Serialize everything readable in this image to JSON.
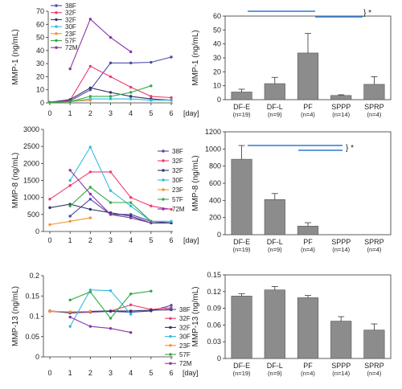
{
  "chart_data": [
    {
      "type": "line",
      "ylabel": "MMP-1 (ng/mL)",
      "xlabel": "[day]",
      "x_ticks": [
        "0",
        "1",
        "2",
        "3",
        "4",
        "5",
        "6"
      ],
      "y_ticks": [
        "0",
        "10",
        "20",
        "30",
        "40",
        "50",
        "60",
        "70"
      ],
      "ylim": [
        0,
        70
      ],
      "xlim": [
        0,
        6
      ],
      "legend_position": "top-left",
      "series": [
        {
          "name": "38F",
          "color": "#4a4aa8",
          "x": [
            0,
            1,
            2,
            3,
            4,
            5,
            6
          ],
          "y": [
            0.5,
            1.5,
            10,
            30.5,
            30.5,
            31,
            35
          ]
        },
        {
          "name": "32F",
          "color": "#ee3c6e",
          "x": [
            0,
            1,
            2,
            3,
            4,
            5,
            6
          ],
          "y": [
            0.5,
            2,
            28,
            20,
            12,
            5,
            4
          ]
        },
        {
          "name": "32F",
          "color": "#333366",
          "x": [
            0,
            1,
            2,
            3,
            4,
            5,
            6
          ],
          "y": [
            0.5,
            2.5,
            11.5,
            8,
            5,
            3,
            2
          ]
        },
        {
          "name": "30F",
          "color": "#33bbdd",
          "x": [
            0,
            1,
            2,
            3,
            4,
            5,
            6
          ],
          "y": [
            0.5,
            1,
            3,
            3,
            3,
            2,
            2
          ]
        },
        {
          "name": "23F",
          "color": "#f0962a",
          "x": [
            0,
            1,
            2
          ],
          "y": [
            0.5,
            1,
            2
          ]
        },
        {
          "name": "57F",
          "color": "#33aa44",
          "x": [
            0,
            1,
            2,
            3,
            4,
            5
          ],
          "y": [
            0.5,
            1,
            5,
            5,
            8,
            13
          ]
        },
        {
          "name": "72M",
          "color": "#8b33a8",
          "x": [
            1,
            2,
            3,
            4
          ],
          "y": [
            26,
            64,
            50,
            39
          ]
        }
      ]
    },
    {
      "type": "bar",
      "ylabel": "MMP-1 (ng/mL)",
      "y_ticks": [
        "0",
        "10",
        "20",
        "30",
        "40",
        "50",
        "60"
      ],
      "ylim": [
        0,
        60
      ],
      "categories": [
        "DF-E",
        "DF-L",
        "PF",
        "SPPP",
        "SPRP"
      ],
      "n_labels": [
        "(n=19)",
        "(n=9)",
        "(n=4)",
        "(n=14)",
        "(n=4)"
      ],
      "values": [
        5.5,
        11.5,
        33.5,
        3,
        11
      ],
      "errors": [
        2,
        4.5,
        14,
        0.5,
        5.5
      ],
      "significance": "} *"
    },
    {
      "type": "line",
      "ylabel": "MMP-8 (ng/mL)",
      "xlabel": "[day]",
      "x_ticks": [
        "0",
        "1",
        "2",
        "3",
        "4",
        "5",
        "6"
      ],
      "y_ticks": [
        "0",
        "500",
        "1000",
        "1500",
        "2000",
        "2500",
        "3000"
      ],
      "ylim": [
        0,
        3000
      ],
      "xlim": [
        0,
        6
      ],
      "legend_position": "right",
      "series": [
        {
          "name": "38F",
          "color": "#4a4aa8",
          "x": [
            1,
            2,
            3,
            4,
            5,
            6
          ],
          "y": [
            450,
            950,
            500,
            500,
            300,
            250
          ]
        },
        {
          "name": "32F",
          "color": "#ee3c6e",
          "x": [
            0,
            1,
            2,
            3,
            4,
            5,
            6
          ],
          "y": [
            950,
            1350,
            1750,
            1750,
            1000,
            750,
            650
          ]
        },
        {
          "name": "32F",
          "color": "#333366",
          "x": [
            0,
            1,
            2,
            3,
            4,
            5,
            6
          ],
          "y": [
            700,
            800,
            650,
            550,
            450,
            250,
            250
          ]
        },
        {
          "name": "30F",
          "color": "#33bbdd",
          "x": [
            1,
            2,
            3,
            4,
            5,
            6
          ],
          "y": [
            1500,
            2480,
            1200,
            750,
            300,
            300
          ]
        },
        {
          "name": "23F",
          "color": "#f0962a",
          "x": [
            0,
            1,
            2
          ],
          "y": [
            200,
            300,
            400
          ]
        },
        {
          "name": "57F",
          "color": "#33aa44",
          "x": [
            1,
            2,
            3,
            4,
            5
          ],
          "y": [
            750,
            1300,
            850,
            850,
            300
          ]
        },
        {
          "name": "72M",
          "color": "#8b33a8",
          "x": [
            1,
            2,
            3,
            4,
            5
          ],
          "y": [
            1800,
            1100,
            500,
            400,
            250
          ]
        }
      ]
    },
    {
      "type": "bar",
      "ylabel": "MMP-8 (ng/mL)",
      "y_ticks": [
        "0",
        "200",
        "400",
        "600",
        "800",
        "1000",
        "1200"
      ],
      "ylim": [
        0,
        1200
      ],
      "categories": [
        "DF-E",
        "DF-L",
        "PF",
        "SPPP",
        "SPRP"
      ],
      "n_labels": [
        "(n=19)",
        "(n=9)",
        "(n=4)",
        "(n=14)",
        "(n=4)"
      ],
      "values": [
        880,
        410,
        100,
        0,
        0
      ],
      "errors": [
        160,
        70,
        40,
        0,
        0
      ],
      "significance": "} *"
    },
    {
      "type": "line",
      "ylabel": "MMP-13 (ng/mL)",
      "xlabel": "[day]",
      "x_ticks": [
        "0",
        "1",
        "2",
        "3",
        "4",
        "5",
        "6"
      ],
      "y_ticks": [
        "0",
        "0.05",
        "0.1",
        "0.15",
        "0.2"
      ],
      "ylim": [
        0,
        0.2
      ],
      "xlim": [
        0,
        6
      ],
      "legend_position": "right",
      "series": [
        {
          "name": "38F",
          "color": "#4a4aa8",
          "x": [
            0,
            1,
            2,
            3,
            4,
            5,
            6
          ],
          "y": [
            0.113,
            0.108,
            0.11,
            0.112,
            0.11,
            0.113,
            0.127
          ]
        },
        {
          "name": "32F",
          "color": "#ee3c6e",
          "x": [
            0,
            1,
            2,
            3,
            4,
            5,
            6
          ],
          "y": [
            0.113,
            0.11,
            0.111,
            0.113,
            0.128,
            0.117,
            0.121
          ]
        },
        {
          "name": "32F",
          "color": "#333366",
          "x": [
            0,
            1,
            2,
            3,
            4,
            5,
            6
          ],
          "y": [
            0.112,
            0.11,
            0.112,
            0.113,
            0.113,
            0.115,
            0.116
          ]
        },
        {
          "name": "30F",
          "color": "#33bbdd",
          "x": [
            1,
            2,
            3,
            4
          ],
          "y": [
            0.075,
            0.165,
            0.163,
            0.105
          ]
        },
        {
          "name": "23F",
          "color": "#f0962a",
          "x": [
            0,
            1,
            2
          ],
          "y": [
            0.112,
            0.111,
            0.112
          ]
        },
        {
          "name": "57F",
          "color": "#33aa44",
          "x": [
            1,
            2,
            3,
            4,
            5
          ],
          "y": [
            0.14,
            0.16,
            0.095,
            0.155,
            0.162
          ]
        },
        {
          "name": "72M",
          "color": "#8b33a8",
          "x": [
            1,
            2,
            3,
            4
          ],
          "y": [
            0.098,
            0.075,
            0.07,
            0.06
          ]
        }
      ]
    },
    {
      "type": "bar",
      "ylabel": "MMP-13 (ng/mL)",
      "y_ticks": [
        "0",
        "0.03",
        "0.06",
        "0.09",
        "0.12",
        "0.15"
      ],
      "ylim": [
        0,
        0.15
      ],
      "categories": [
        "DF-E",
        "DF-L",
        "PF",
        "SPPP",
        "SPRP"
      ],
      "n_labels": [
        "(n=19)",
        "(n=9)",
        "(n=4)",
        "(n=14)",
        "(n=4)"
      ],
      "values": [
        0.112,
        0.123,
        0.109,
        0.067,
        0.051
      ],
      "errors": [
        0.004,
        0.006,
        0.004,
        0.008,
        0.011
      ]
    }
  ],
  "colors": {
    "bar_fill": "#8c8c8c",
    "bar_stroke": "#555555",
    "sig_line": "#2d7ad6"
  }
}
